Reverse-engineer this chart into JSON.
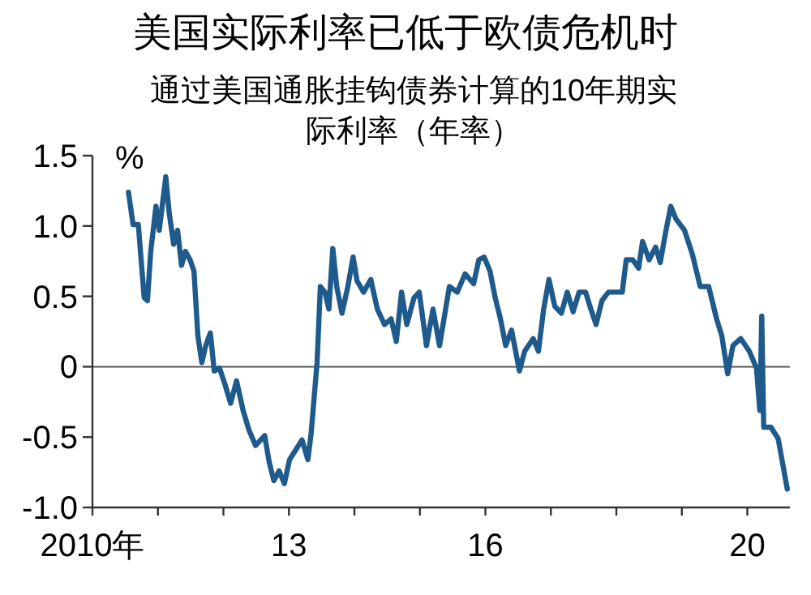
{
  "chart_data": {
    "type": "line",
    "title": "美国实际利率已低于欧债危机时",
    "subtitle": "通过美国通胀挂钩债券计算的10年期实际利率（年率）",
    "ylabel": "%",
    "xlim": [
      2010.0,
      2020.65
    ],
    "ylim": [
      -1.0,
      1.5
    ],
    "xticks": [
      {
        "value": 2010,
        "label": "2010年"
      },
      {
        "value": 2011,
        "label": null
      },
      {
        "value": 2012,
        "label": null
      },
      {
        "value": 2013,
        "label": "13"
      },
      {
        "value": 2014,
        "label": null
      },
      {
        "value": 2015,
        "label": null
      },
      {
        "value": 2016,
        "label": "16"
      },
      {
        "value": 2017,
        "label": null
      },
      {
        "value": 2018,
        "label": null
      },
      {
        "value": 2019,
        "label": null
      },
      {
        "value": 2020,
        "label": "20"
      }
    ],
    "yticks": [
      {
        "value": -1.0,
        "label": "-1.0"
      },
      {
        "value": -0.5,
        "label": "-0.5"
      },
      0,
      {
        "value": 0.5,
        "label": "0.5"
      },
      {
        "value": 1.0,
        "label": "1.0"
      },
      {
        "value": 1.5,
        "label": "1.5"
      }
    ],
    "ref_lines": [
      {
        "axis": "y",
        "value": 0,
        "color": "#555555"
      }
    ],
    "grid": false,
    "marker": "none",
    "line_style": "solid",
    "series": [
      {
        "color": "#1f5a8c",
        "x": [
          2010.55,
          2010.62,
          2010.7,
          2010.79,
          2010.84,
          2010.89,
          2010.97,
          2011.02,
          2011.12,
          2011.17,
          2011.24,
          2011.3,
          2011.36,
          2011.42,
          2011.49,
          2011.55,
          2011.61,
          2011.67,
          2011.73,
          2011.8,
          2011.86,
          2011.94,
          2012.02,
          2012.11,
          2012.2,
          2012.3,
          2012.39,
          2012.49,
          2012.63,
          2012.7,
          2012.77,
          2012.85,
          2012.93,
          2013.01,
          2013.12,
          2013.2,
          2013.29,
          2013.34,
          2013.43,
          2013.48,
          2013.55,
          2013.61,
          2013.67,
          2013.73,
          2013.81,
          2013.9,
          2013.98,
          2014.04,
          2014.14,
          2014.25,
          2014.35,
          2014.46,
          2014.56,
          2014.64,
          2014.72,
          2014.8,
          2014.91,
          2014.99,
          2015.1,
          2015.2,
          2015.3,
          2015.45,
          2015.57,
          2015.69,
          2015.82,
          2015.9,
          2015.98,
          2016.07,
          2016.15,
          2016.23,
          2016.31,
          2016.4,
          2016.52,
          2016.6,
          2016.73,
          2016.81,
          2016.89,
          2016.97,
          2017.06,
          2017.16,
          2017.25,
          2017.34,
          2017.43,
          2017.53,
          2017.61,
          2017.69,
          2017.78,
          2017.88,
          2017.99,
          2018.09,
          2018.15,
          2018.25,
          2018.34,
          2018.4,
          2018.5,
          2018.6,
          2018.67,
          2018.75,
          2018.83,
          2018.91,
          2019.04,
          2019.16,
          2019.28,
          2019.41,
          2019.53,
          2019.61,
          2019.7,
          2019.78,
          2019.9,
          2020.03,
          2020.14,
          2020.19,
          2020.22,
          2020.25,
          2020.36,
          2020.47,
          2020.61
        ],
        "values": [
          1.24,
          1.01,
          1.01,
          0.49,
          0.47,
          0.82,
          1.14,
          0.97,
          1.35,
          1.1,
          0.87,
          0.97,
          0.72,
          0.82,
          0.76,
          0.68,
          0.22,
          0.03,
          0.15,
          0.24,
          -0.03,
          -0.01,
          -0.12,
          -0.26,
          -0.1,
          -0.31,
          -0.45,
          -0.56,
          -0.49,
          -0.68,
          -0.81,
          -0.74,
          -0.83,
          -0.66,
          -0.58,
          -0.52,
          -0.66,
          -0.47,
          0.03,
          0.57,
          0.53,
          0.41,
          0.84,
          0.57,
          0.38,
          0.57,
          0.78,
          0.61,
          0.53,
          0.62,
          0.41,
          0.3,
          0.34,
          0.18,
          0.53,
          0.3,
          0.49,
          0.53,
          0.15,
          0.41,
          0.15,
          0.57,
          0.53,
          0.66,
          0.59,
          0.76,
          0.78,
          0.68,
          0.49,
          0.34,
          0.15,
          0.26,
          -0.03,
          0.11,
          0.2,
          0.11,
          0.41,
          0.62,
          0.43,
          0.38,
          0.53,
          0.39,
          0.53,
          0.53,
          0.41,
          0.3,
          0.47,
          0.53,
          0.53,
          0.53,
          0.76,
          0.76,
          0.7,
          0.89,
          0.76,
          0.85,
          0.74,
          0.95,
          1.14,
          1.05,
          0.97,
          0.8,
          0.57,
          0.57,
          0.34,
          0.22,
          -0.05,
          0.15,
          0.2,
          0.11,
          -0.01,
          -0.31,
          0.36,
          -0.43,
          -0.43,
          -0.51,
          -0.87
        ]
      }
    ]
  }
}
